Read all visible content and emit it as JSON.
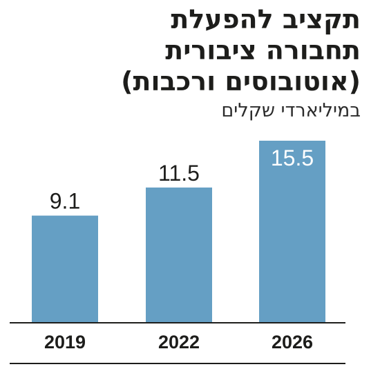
{
  "chart_data": {
    "type": "bar",
    "title_lines": [
      "תקציב להפעלת",
      "תחבורה ציבורית",
      "(אוטובוסים ורכבות)"
    ],
    "subtitle": "במיליארדי שקלים",
    "categories": [
      "2019",
      "2022",
      "2026"
    ],
    "values": [
      9.1,
      11.5,
      15.5
    ],
    "value_labels": [
      "9.1",
      "11.5",
      "15.5"
    ],
    "ylim": [
      0,
      15.5
    ],
    "grid": false,
    "bar_color": "#659fc4",
    "axis_color": "#1d1d1b"
  }
}
